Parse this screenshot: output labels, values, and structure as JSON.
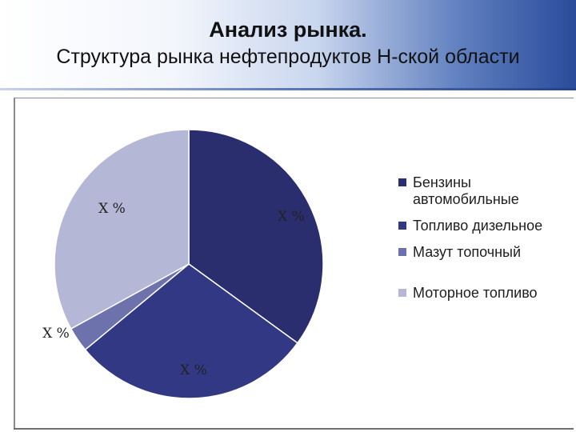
{
  "title": {
    "main": "Анализ рынка.",
    "sub": "Структура рынка нефтепродуктов Н-ской области"
  },
  "chart_data": {
    "type": "pie",
    "slices": [
      {
        "name": "Бензины автомобильные",
        "value": 35,
        "label": "X %",
        "color": "#2b2e6e"
      },
      {
        "name": "Топливо дизельное",
        "value": 29,
        "label": "X %",
        "color": "#333884"
      },
      {
        "name": "Мазут топочный",
        "value": 3,
        "label": "X %",
        "color": "#6d72ad"
      },
      {
        "name": "Моторное топливо",
        "value": 33,
        "label": "X %",
        "color": "#b5b7d6"
      }
    ],
    "legend_position": "right"
  }
}
